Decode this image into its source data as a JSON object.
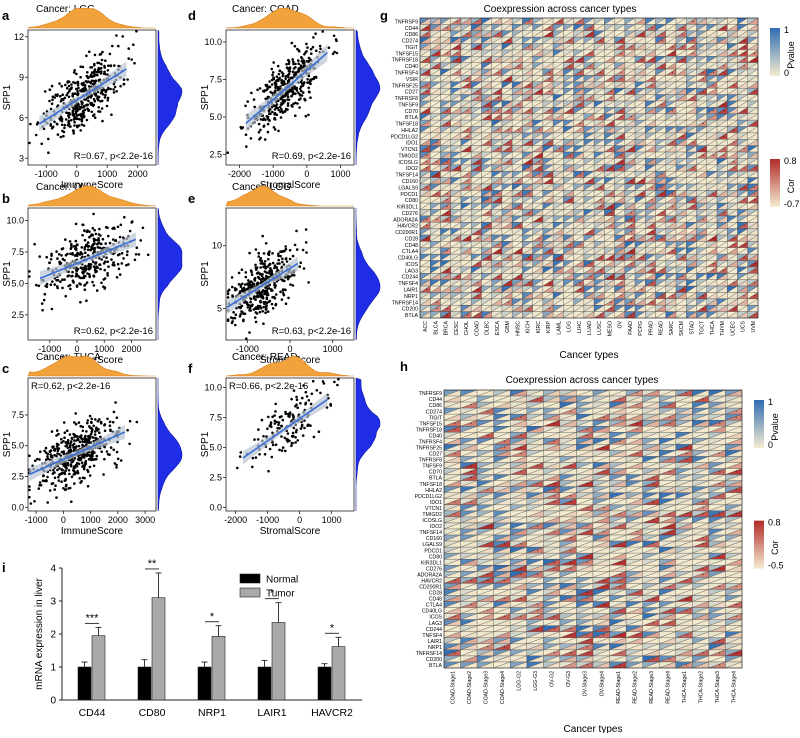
{
  "chart_data": [
    {
      "id": "a",
      "type": "scatter",
      "title": "Cancer: LGG",
      "xlabel": "ImmuneScore",
      "ylabel": "SPP1",
      "xlim": [
        -1600,
        2600
      ],
      "ylim": [
        2.5,
        12.5
      ],
      "xticks": [
        "-1000",
        "0",
        "1000",
        "2000"
      ],
      "xtick_values": [
        -1000,
        0,
        1000,
        2000
      ],
      "yticks": [
        "3",
        "6",
        "9",
        "12"
      ],
      "ytick_values": [
        3,
        6,
        9,
        12
      ],
      "annotation": "R=0.67, p<2.2e-16",
      "fit": {
        "slope": 0.00142,
        "intercept": 7.3
      },
      "n_points": 420,
      "x_mean": 200,
      "x_sd": 650,
      "noise": 1.1
    },
    {
      "id": "b",
      "type": "scatter",
      "title": "Cancer: OV",
      "xlabel": "ImmuneScore",
      "ylabel": "SPP1",
      "xlim": [
        -1800,
        2900
      ],
      "ylim": [
        0.5,
        11
      ],
      "xticks": [
        "-1000",
        "0",
        "1000",
        "2000"
      ],
      "xtick_values": [
        -1000,
        0,
        1000,
        2000
      ],
      "yticks": [
        "2.5",
        "5.0",
        "7.5",
        "10.0"
      ],
      "ytick_values": [
        2.5,
        5.0,
        7.5,
        10.0
      ],
      "annotation": "R=0.62, p<2.2e-16",
      "fit": {
        "slope": 0.00088,
        "intercept": 6.6
      },
      "n_points": 380,
      "x_mean": 400,
      "x_sd": 800,
      "noise": 1.2
    },
    {
      "id": "c",
      "type": "scatter",
      "title": "Cancer: THCA",
      "xlabel": "ImmuneScore",
      "ylabel": "SPP1",
      "xlim": [
        -1300,
        3400
      ],
      "ylim": [
        -0.3,
        10.5
      ],
      "xticks": [
        "-1000",
        "0",
        "1000",
        "2000",
        "3000"
      ],
      "xtick_values": [
        -1000,
        0,
        1000,
        2000,
        3000
      ],
      "yticks": [
        "0.0",
        "2.5",
        "5.0",
        "7.5"
      ],
      "ytick_values": [
        0,
        2.5,
        5.0,
        7.5
      ],
      "annotation": "R=0.62, p<2.2e-16",
      "fit": {
        "slope": 0.00098,
        "intercept": 3.9
      },
      "n_points": 480,
      "x_mean": 500,
      "x_sd": 800,
      "noise": 1.2
    },
    {
      "id": "d",
      "type": "scatter",
      "title": "Cancer: COAD",
      "xlabel": "StromalScore",
      "ylabel": "SPP1",
      "xlim": [
        -2400,
        1400
      ],
      "ylim": [
        1.8,
        10.8
      ],
      "xticks": [
        "-2000",
        "-1000",
        "0",
        "1000"
      ],
      "xtick_values": [
        -2000,
        -1000,
        0,
        1000
      ],
      "yticks": [
        "2.5",
        "5.0",
        "7.5",
        "10.0"
      ],
      "ytick_values": [
        2.5,
        5.0,
        7.5,
        10.0
      ],
      "annotation": "R=0.69, p<2.2e-16",
      "fit": {
        "slope": 0.00195,
        "intercept": 8.1
      },
      "n_points": 420,
      "x_mean": -600,
      "x_sd": 550,
      "noise": 1.0
    },
    {
      "id": "e",
      "type": "scatter",
      "title": "Cancer: LGG",
      "xlabel": "StromalScore",
      "ylabel": "SPP1",
      "xlim": [
        -1500,
        1500
      ],
      "ylim": [
        2.5,
        13
      ],
      "xticks": [
        "-1000",
        "0",
        "1000"
      ],
      "xtick_values": [
        -1000,
        0,
        1000
      ],
      "yticks": [
        "5",
        "10"
      ],
      "ytick_values": [
        5,
        10
      ],
      "annotation": "R=0.63, p<2.2e-16",
      "fit": {
        "slope": 0.0021,
        "intercept": 8.2
      },
      "n_points": 420,
      "x_mean": -650,
      "x_sd": 380,
      "noise": 1.1
    },
    {
      "id": "f",
      "type": "scatter",
      "title": "Cancer: READ",
      "xlabel": "StromalScore",
      "ylabel": "SPP1",
      "xlim": [
        -2300,
        1700
      ],
      "ylim": [
        -0.3,
        10.8
      ],
      "xticks": [
        "-2000",
        "-1000",
        "0",
        "1000"
      ],
      "xtick_values": [
        -2000,
        -1000,
        0,
        1000
      ],
      "yticks": [
        "0.0",
        "2.5",
        "5.0",
        "7.5",
        "10.0"
      ],
      "ytick_values": [
        0,
        2.5,
        5.0,
        7.5,
        10.0
      ],
      "annotation": "R=0.66, p<2.2e-16",
      "fit": {
        "slope": 0.00185,
        "intercept": 7.4
      },
      "n_points": 160,
      "x_mean": -450,
      "x_sd": 600,
      "noise": 1.1
    },
    {
      "id": "g",
      "type": "heatmap",
      "title": "Coexpression across cancer types",
      "xlabel": "Cancer types",
      "rows": [
        "TNFRSF9",
        "CD44",
        "CD86",
        "CD274",
        "TIGIT",
        "TNFSF15",
        "TNFRSF18",
        "CD40",
        "TNFRSF4",
        "VSIR",
        "TNFRSF25",
        "CD27",
        "TNFRSF8",
        "TNFSF9",
        "CD70",
        "BTLA",
        "TNFSF18",
        "HHLA2",
        "PDCD1LG2",
        "IDO1",
        "VTCN1",
        "TMIGD2",
        "ICOSLG",
        "IDO2",
        "TNFSF14",
        "CD160",
        "LGALS9",
        "PDCD1",
        "CD80",
        "KIR3DL1",
        "CD276",
        "ADORA2A",
        "HAVCR2",
        "CD200R1",
        "CD28",
        "CD48",
        "CTLA4",
        "CD40LG",
        "ICOS",
        "LAG3",
        "CD244",
        "TNFSF4",
        "LAIR1",
        "NRP1",
        "TNFRSF14",
        "CD200",
        "BTLA"
      ],
      "columns": [
        "ACC",
        "BLCA",
        "BRCA",
        "CESC",
        "CHOL",
        "COAD",
        "DLBC",
        "ESCA",
        "GBM",
        "HNSC",
        "KICH",
        "KIRC",
        "KIRP",
        "LAML",
        "LGG",
        "LIHC",
        "LUAD",
        "LUSC",
        "MESO",
        "OV",
        "PAAD",
        "PCPG",
        "PRAD",
        "READ",
        "SARC",
        "SKCM",
        "STAD",
        "TGCT",
        "THCA",
        "THYM",
        "UCEC",
        "UCS",
        "UVM"
      ],
      "legend": {
        "pvalue_title": "Pvalue",
        "pvalue_ticks": [
          "1",
          "0"
        ],
        "cor_title": "Cor",
        "cor_ticks": [
          "0.8",
          "-0.7"
        ]
      },
      "colors": {
        "blue": "#2f6db3",
        "red": "#b22a2a",
        "light": "#f4ecd0"
      }
    },
    {
      "id": "h",
      "type": "heatmap",
      "title": "Coexpression across cancer types",
      "xlabel": "Cancer types",
      "rows": [
        "TNFRSF9",
        "CD44",
        "CD86",
        "CD274",
        "TIGIT",
        "TNFSF15",
        "TNFRSF18",
        "CD40",
        "TNFRSF4",
        "TNFRSF25",
        "CD27",
        "TNFRSF8",
        "TNFSF9",
        "CD70",
        "BTLA",
        "TNFSF18",
        "HHLA2",
        "PDCD1LG2",
        "IDO1",
        "VTCN1",
        "TMIGD2",
        "ICOSLG",
        "IDO2",
        "TNFSF14",
        "CD160",
        "LGALS9",
        "PDCD1",
        "CD80",
        "KIR3DL1",
        "CD276",
        "ADORA2A",
        "HAVCR2",
        "CD200R1",
        "CD28",
        "CD48",
        "CTLA4",
        "CD40LG",
        "ICOS",
        "LAG3",
        "CD244",
        "TNFSF4",
        "LAIR1",
        "NRP1",
        "TNFRSF14",
        "CD200",
        "BTLA"
      ],
      "columns": [
        "COAD-Stage1",
        "COAD-Stage2",
        "COAD-Stage3",
        "COAD-Stage4",
        "LGG-G2",
        "LGG-G3",
        "OV-G2",
        "OV-G3",
        "OV-Stage3",
        "OV-Stage4",
        "READ-Stage1",
        "READ-Stage2",
        "READ-Stage3",
        "READ-Stage4",
        "THCA-Stage1",
        "THCA-Stage2",
        "THCA-Stage3",
        "THCA-Stage4"
      ],
      "legend": {
        "pvalue_title": "Pvalue",
        "pvalue_ticks": [
          "1",
          "0"
        ],
        "cor_title": "Cor",
        "cor_ticks": [
          "0.8",
          "-0.5"
        ]
      },
      "colors": {
        "blue": "#2f6db3",
        "red": "#b22a2a",
        "light": "#f4ecd0"
      }
    },
    {
      "id": "i",
      "type": "bar",
      "ylabel": "mRNA expression in liver",
      "categories": [
        "CD44",
        "CD80",
        "NRP1",
        "LAIR1",
        "HAVCR2"
      ],
      "ylim": [
        0,
        4
      ],
      "yticks": [
        "0",
        "1",
        "2",
        "3",
        "4"
      ],
      "ytick_values": [
        0,
        1,
        2,
        3,
        4
      ],
      "series": [
        {
          "name": "Normal",
          "values": [
            1.0,
            1.0,
            1.0,
            1.0,
            1.0
          ],
          "errors": [
            0.15,
            0.22,
            0.15,
            0.2,
            0.1
          ],
          "color": "#000000"
        },
        {
          "name": "Tumor",
          "values": [
            1.95,
            3.1,
            1.93,
            2.35,
            1.62
          ],
          "errors": [
            0.25,
            0.75,
            0.32,
            0.6,
            0.28
          ],
          "color": "#a9a9a9"
        }
      ],
      "significance": [
        "***",
        "**",
        "*",
        "*",
        "*"
      ]
    }
  ]
}
